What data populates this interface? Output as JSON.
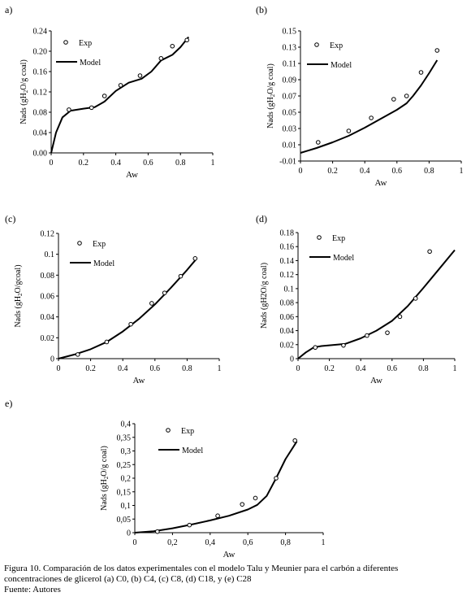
{
  "chart_data": [
    {
      "type": "scatter",
      "panel_label": "a)",
      "xlabel": "Aw",
      "ylabel": "Nads (gH₂O/g coal)",
      "ylabel_parts": [
        "Nads (gH",
        "2",
        "O/g coal)"
      ],
      "xlim": [
        0,
        1
      ],
      "ylim": [
        0,
        0.24
      ],
      "x_ticks": [
        "0",
        "0.2",
        "0.4",
        "0.6",
        "0.8",
        "1"
      ],
      "y_ticks": [
        "0.00",
        "0.04",
        "0.08",
        "0.12",
        "0.16",
        "0.20",
        "0.24"
      ],
      "legend": {
        "placement": "top-center",
        "exp": "Exp",
        "model": "Model"
      },
      "series": [
        {
          "name": "Exp",
          "kind": "markers",
          "x": [
            0.11,
            0.25,
            0.33,
            0.43,
            0.55,
            0.68,
            0.75,
            0.84
          ],
          "y": [
            0.085,
            0.089,
            0.112,
            0.133,
            0.152,
            0.186,
            0.21,
            0.222
          ]
        },
        {
          "name": "Model",
          "kind": "line",
          "x": [
            0,
            0.03,
            0.07,
            0.12,
            0.2,
            0.27,
            0.33,
            0.4,
            0.48,
            0.56,
            0.62,
            0.68,
            0.75,
            0.8,
            0.85
          ],
          "y": [
            0,
            0.04,
            0.07,
            0.083,
            0.087,
            0.09,
            0.101,
            0.122,
            0.138,
            0.146,
            0.16,
            0.182,
            0.193,
            0.208,
            0.228
          ]
        }
      ]
    },
    {
      "type": "scatter",
      "panel_label": "(b)",
      "xlabel": "Aw",
      "ylabel": "Nads (gH₂O/g coal)",
      "ylabel_parts": [
        "Nads (gH",
        "2",
        "O/g coal)"
      ],
      "xlim": [
        0,
        1
      ],
      "ylim": [
        -0.01,
        0.15
      ],
      "x_ticks": [
        "0",
        "0.2",
        "0.4",
        "0.6",
        "0.8",
        "1"
      ],
      "y_ticks": [
        "-0.01",
        "0.01",
        "0.03",
        "0.05",
        "0.07",
        "0.09",
        "0.11",
        "0.13",
        "0.15"
      ],
      "legend": {
        "placement": "top-left",
        "exp": "Exp",
        "model": "Model"
      },
      "series": [
        {
          "name": "Exp",
          "kind": "markers",
          "x": [
            0.11,
            0.3,
            0.44,
            0.58,
            0.66,
            0.75,
            0.85
          ],
          "y": [
            0.013,
            0.027,
            0.043,
            0.066,
            0.07,
            0.099,
            0.126
          ]
        },
        {
          "name": "Model",
          "kind": "line",
          "x": [
            0,
            0.1,
            0.2,
            0.3,
            0.4,
            0.5,
            0.6,
            0.66,
            0.7,
            0.75,
            0.8,
            0.85
          ],
          "y": [
            0,
            0.006,
            0.013,
            0.021,
            0.031,
            0.042,
            0.053,
            0.061,
            0.07,
            0.083,
            0.098,
            0.114
          ]
        }
      ]
    },
    {
      "type": "scatter",
      "panel_label": "(c)",
      "xlabel": "Aw",
      "ylabel": "Nads (gH₂O/gcoal)",
      "ylabel_parts": [
        "Nads (gH",
        "2",
        "O/gcoal)"
      ],
      "xlim": [
        0,
        1
      ],
      "ylim": [
        0,
        0.12
      ],
      "x_ticks": [
        "0",
        "0.2",
        "0.4",
        "0.6",
        "0.8",
        "1"
      ],
      "y_ticks": [
        "0",
        "0.02",
        "0.04",
        "0.06",
        "0.08",
        "0.1",
        "0.12"
      ],
      "legend": {
        "placement": "top-center",
        "exp": "Exp",
        "model": "Model"
      },
      "series": [
        {
          "name": "Exp",
          "kind": "markers",
          "x": [
            0.12,
            0.3,
            0.45,
            0.58,
            0.66,
            0.76,
            0.85
          ],
          "y": [
            0.004,
            0.016,
            0.033,
            0.053,
            0.063,
            0.079,
            0.096
          ]
        },
        {
          "name": "Model",
          "kind": "line",
          "x": [
            0,
            0.1,
            0.2,
            0.3,
            0.4,
            0.5,
            0.6,
            0.7,
            0.8,
            0.86
          ],
          "y": [
            0,
            0.004,
            0.009,
            0.016,
            0.026,
            0.038,
            0.052,
            0.068,
            0.085,
            0.096
          ]
        }
      ]
    },
    {
      "type": "scatter",
      "panel_label": "(d)",
      "xlabel": "Aw",
      "ylabel": "Nads (gH2O/g coal)",
      "ylabel_parts": [
        "Nads (gH2O/g coal)",
        "",
        ""
      ],
      "xlim": [
        0,
        1
      ],
      "ylim": [
        0,
        0.18
      ],
      "x_ticks": [
        "0",
        "0.2",
        "0.4",
        "0.6",
        "0.8",
        "1"
      ],
      "y_ticks": [
        "0",
        "0.02",
        "0.04",
        "0.06",
        "0.08",
        "0.1",
        "0.12",
        "0.14",
        "0.16",
        "0.18"
      ],
      "legend": {
        "placement": "top-center",
        "exp": "Exp",
        "model": "Model"
      },
      "series": [
        {
          "name": "Exp",
          "kind": "markers",
          "x": [
            0.11,
            0.29,
            0.44,
            0.57,
            0.65,
            0.75,
            0.84
          ],
          "y": [
            0.016,
            0.019,
            0.033,
            0.037,
            0.06,
            0.086,
            0.153
          ]
        },
        {
          "name": "Model",
          "kind": "line",
          "x": [
            0,
            0.05,
            0.1,
            0.15,
            0.2,
            0.3,
            0.4,
            0.5,
            0.6,
            0.7,
            0.8,
            0.9,
            1.0
          ],
          "y": [
            0,
            0.009,
            0.016,
            0.018,
            0.019,
            0.021,
            0.029,
            0.04,
            0.054,
            0.075,
            0.101,
            0.128,
            0.155
          ]
        }
      ]
    },
    {
      "type": "scatter",
      "panel_label": "e)",
      "xlabel": "Aw",
      "ylabel": "Nads (gH₂O/g coal)",
      "ylabel_parts": [
        "Nads (gH",
        "2",
        "O/g coal)"
      ],
      "xlim": [
        0,
        1
      ],
      "ylim": [
        0,
        0.4
      ],
      "x_ticks": [
        "0",
        "0,2",
        "0,4",
        "0,6",
        "0,8",
        "1"
      ],
      "y_ticks": [
        "0",
        "0,05",
        "0,1",
        "0,15",
        "0,2",
        "0,25",
        "0,3",
        "0,35",
        "0,4"
      ],
      "legend": {
        "placement": "top-center",
        "exp": "Exp",
        "model": "Model"
      },
      "series": [
        {
          "name": "Exp",
          "kind": "markers",
          "x": [
            0.12,
            0.29,
            0.44,
            0.57,
            0.64,
            0.75,
            0.85
          ],
          "y": [
            0.004,
            0.028,
            0.062,
            0.104,
            0.127,
            0.2,
            0.338
          ]
        },
        {
          "name": "Model",
          "kind": "line",
          "x": [
            0,
            0.1,
            0.2,
            0.3,
            0.4,
            0.5,
            0.6,
            0.65,
            0.7,
            0.75,
            0.8,
            0.86
          ],
          "y": [
            0,
            0.005,
            0.016,
            0.03,
            0.045,
            0.062,
            0.085,
            0.102,
            0.135,
            0.2,
            0.27,
            0.335
          ]
        }
      ]
    }
  ],
  "caption": {
    "line1": "Figura 10. Comparación de los datos experimentales con el modelo Talu y Meunier para el carbón a diferentes",
    "line2": "concentraciones de glicerol (a) C0, (b) C4, (c) C8, (d) C18, y (e) C28",
    "source": "Fuente: Autores"
  }
}
